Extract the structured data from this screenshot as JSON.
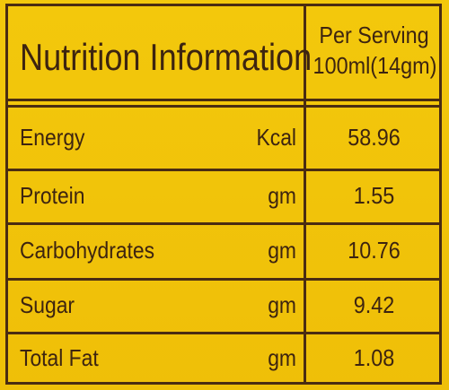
{
  "header": {
    "title": "Nutrition Information",
    "serving": [
      "Per Serving",
      "100ml(14gm)"
    ]
  },
  "table": {
    "rows": [
      [
        "Energy",
        "Kcal",
        "58.96"
      ],
      [
        "Protein",
        "gm",
        "1.55"
      ],
      [
        "Carbohydrates",
        "gm",
        "10.76"
      ],
      [
        "Sugar",
        "gm",
        "9.42"
      ],
      [
        "Total Fat",
        "gm",
        "1.08"
      ]
    ]
  }
}
